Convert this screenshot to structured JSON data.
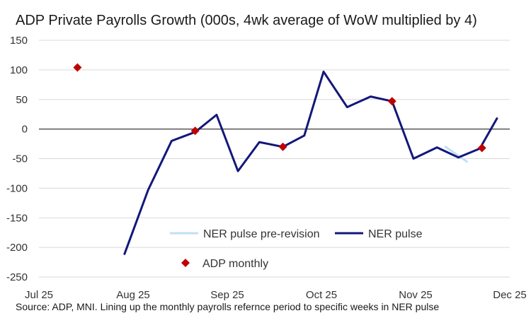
{
  "chart_data": {
    "type": "line",
    "title": "ADP Private Payrolls Growth (000s, 4wk average of WoW multiplied by 4)",
    "source": "Source: ADP, MNI. Lining up the monthly payrolls refernce period to specific weeks in NER pulse",
    "xlabel": "",
    "ylabel": "",
    "ylim": [
      -250,
      150
    ],
    "yticks": [
      150,
      100,
      50,
      0,
      -50,
      -100,
      -150,
      -200,
      -250
    ],
    "xlim": [
      0,
      22
    ],
    "xticks": [
      {
        "x": 0,
        "label": "Jul 25"
      },
      {
        "x": 4.4,
        "label": "Aug 25"
      },
      {
        "x": 8.8,
        "label": "Sep 25"
      },
      {
        "x": 13.2,
        "label": "Oct 25"
      },
      {
        "x": 17.6,
        "label": "Nov 25"
      },
      {
        "x": 22,
        "label": "Dec 25"
      }
    ],
    "grid": true,
    "series": [
      {
        "name": "NER pulse pre-revision",
        "kind": "line",
        "color": "#bfe0f5",
        "points": [
          [
            19.0,
            -30
          ],
          [
            20.0,
            -55
          ]
        ]
      },
      {
        "name": "NER pulse",
        "kind": "line",
        "color": "#13177a",
        "points": [
          [
            4.0,
            -211
          ],
          [
            5.1,
            -103
          ],
          [
            6.2,
            -20
          ],
          [
            7.3,
            -5
          ],
          [
            8.3,
            24
          ],
          [
            9.3,
            -71
          ],
          [
            10.3,
            -22
          ],
          [
            11.4,
            -30
          ],
          [
            12.4,
            -11
          ],
          [
            13.3,
            97
          ],
          [
            14.4,
            37
          ],
          [
            15.5,
            55
          ],
          [
            16.5,
            47
          ],
          [
            17.5,
            -50
          ],
          [
            18.6,
            -31
          ],
          [
            19.6,
            -48
          ],
          [
            20.6,
            -33
          ],
          [
            21.4,
            18
          ]
        ]
      },
      {
        "name": "ADP monthly",
        "kind": "marker",
        "color": "#c00000",
        "points": [
          [
            1.8,
            104
          ],
          [
            7.3,
            -3
          ],
          [
            11.4,
            -30
          ],
          [
            16.5,
            47
          ],
          [
            20.7,
            -32
          ]
        ]
      }
    ],
    "legend": {
      "placement": "bottom-center",
      "entries": [
        "NER pulse pre-revision",
        "NER pulse",
        "ADP monthly"
      ]
    }
  }
}
